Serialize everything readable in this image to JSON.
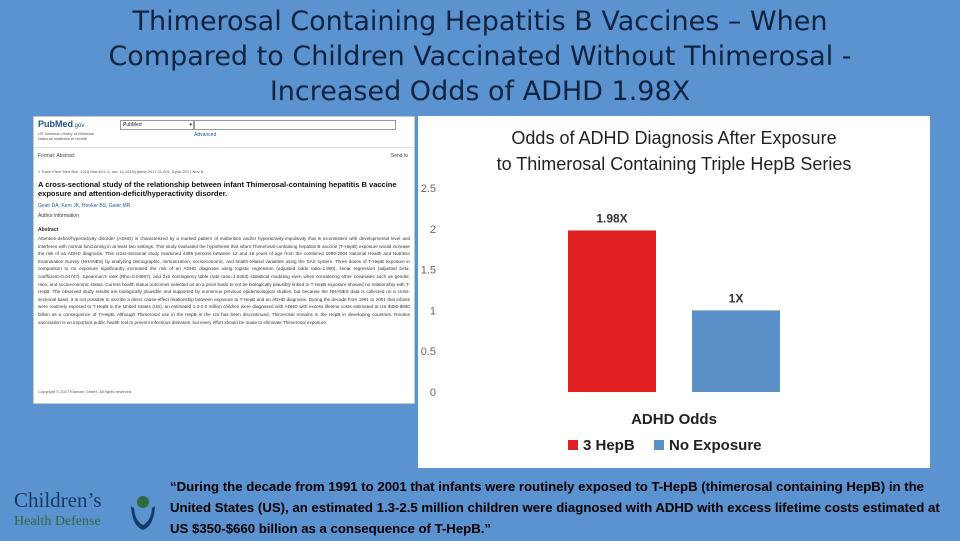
{
  "slide": {
    "title": "Thimerosal Containing Hepatitis B Vaccines – When Compared to Children Vaccinated Without Thimerosal - Increased Odds of ADHD 1.98X"
  },
  "pubmed": {
    "logo": "PubMed",
    "logo_suffix": ".gov",
    "org": "US National Library of Medicine National Institutes of Health",
    "db_select": "PubMed",
    "advanced_link": "Advanced",
    "format": "Format: Abstract",
    "send_to": "Send to",
    "journal": "J Trace Elem Med Biol. 2018 Mar;46:1-9. doi: 10.1016/j.jtemb.2017.11.001. Epub 2017 Nov 8.",
    "article_title": "A cross-sectional study of the relationship between infant Thimerosal-containing hepatitis B vaccine exposure and attention-deficit/hyperactivity disorder.",
    "authors": "Geier DA, Kern JK, Hooker BS, Geier MR",
    "author_info": "Author information",
    "abstract_label": "Abstract",
    "abstract": "Attention-deficit/hyperactivity disorder (ADHD) is characterized by a marked pattern of inattention and/or hyperactivity-impulsivity that is inconsistent with developmental level and interferes with normal functioning in at least two settings. This study evaluated the hypothesis that infant Thimerosal-containing hepatitis B vaccine (T-HepB) exposure would increase the risk of an ADHD diagnosis. This cross-sectional study examined 4385 persons between 12 and 18 years of age from the combined 1999-2004 National Health and Nutrition Examination Survey (NHANES) by analyzing demographic, immunization, socioeconomic, and health-related variables using the SAS system. Three doses of T-HepB exposure in comparison to no exposure significantly increased the risk of an ADHD diagnosis using logistic regression (adjusted odds ratio=1.980), linear regression (adjusted beta-coefficient=0.04747), Spearman's rank (Rho=0.04807), and 2x2 contingency table (rate ratio=1.6353) statistical modeling even when considering other covariates such as gender, race, and socioeconomic status. Current health status outcomes selected as an a priori basis to not be biologically plausibly linked to T-HepB exposure showed no relationship with T-HepB. The observed study results are biologically plausible and supported by numerous previous epidemiological studies, but because the NHANES data is collected on a cross-sectional basis, it is not possible to ascribe a direct cause-effect relationship between exposure to T-HepB and an ADHD diagnosis. During the decade from 1991 to 2001 that infants were routinely exposed to T-HepB in the United States (US), an estimated 1.3-2.5 million children were diagnosed with ADHD with excess lifetime costs estimated at US $350-$660 billion as a consequence of T-HepB. Although Thimerosal use in the HepB in the US has been discontinued, Thimerosal remains in the HepB in developing countries. Routine vaccination is an important public health tool to prevent infectious diseases, but every effort should be made to eliminate Thimerosal exposure.",
    "copyright": "Copyright © 2017 Elsevier GmbH. All rights reserved."
  },
  "chart_data": {
    "type": "bar",
    "title": "Odds of ADHD Diagnosis After Exposure to Thimerosal Containing Triple HepB Series",
    "xlabel": "ADHD Odds",
    "ylabel": "",
    "ylim": [
      0,
      2.5
    ],
    "yticks": [
      0,
      0.5,
      1,
      1.5,
      2,
      2.5
    ],
    "ytick_labels": [
      "0",
      "0.5",
      "1",
      "1.5",
      "2",
      "2.5"
    ],
    "grid": false,
    "legend": "bottom",
    "categories": [
      "ADHD Odds"
    ],
    "series": [
      {
        "name": "3 HepB",
        "values": [
          1.98
        ],
        "label": "1.98X",
        "color": "#e02020"
      },
      {
        "name": "No Exposure",
        "values": [
          1
        ],
        "label": "1X",
        "color": "#5b8fc8"
      }
    ]
  },
  "quote": {
    "text": "“During the decade from 1991 to 2001 that infants were routinely exposed to T-HepB (thimerosal containing HepB) in the United States (US), an estimated 1.3-2.5 million children were diagnosed with ADHD with excess lifetime costs estimated at US $350-$660 billion as a consequence of T-HepB.”"
  },
  "logo": {
    "line1": "Children’s",
    "line2": "Health Defense"
  },
  "colors": {
    "background": "#5b92d0",
    "title": "#10243f"
  }
}
